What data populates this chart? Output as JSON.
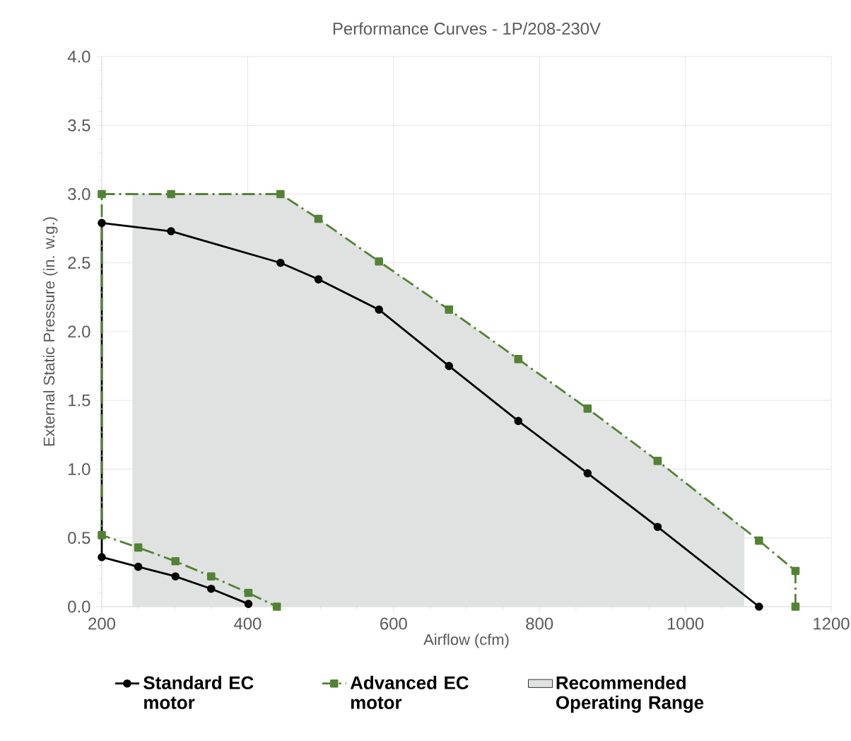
{
  "chart_data": {
    "type": "line",
    "title": "Performance Curves - 1P/208-230V",
    "xlabel": "Airflow (cfm)",
    "ylabel": "External Static Pressure (in. w.g.)",
    "xlim": [
      200,
      1200
    ],
    "xticks": [
      200,
      400,
      600,
      800,
      1000,
      1200
    ],
    "ylim": [
      0,
      4
    ],
    "yticks": [
      {
        "value": 0,
        "label": "0.0"
      },
      {
        "value": 0.5,
        "label": "0.5"
      },
      {
        "value": 1,
        "label": "1.0"
      },
      {
        "value": 1.5,
        "label": "1.5"
      },
      {
        "value": 2,
        "label": "2.0"
      },
      {
        "value": 2.5,
        "label": "2.5"
      },
      {
        "value": 3,
        "label": "3.0"
      },
      {
        "value": 3.5,
        "label": "3.5"
      },
      {
        "value": 4,
        "label": "4.0"
      }
    ],
    "grid": true,
    "legend": "bottom",
    "series": [
      {
        "name": "Recommended Operating Range",
        "type": "area",
        "color": "#e0e1e1",
        "x": [
          242,
          445,
          497,
          580,
          676,
          771,
          866,
          962,
          1081
        ],
        "values": [
          3.0,
          3.0,
          2.82,
          2.51,
          2.16,
          1.8,
          1.44,
          1.06,
          0.57
        ]
      },
      {
        "name": "Standard EC motor",
        "color": "#000000",
        "marker": "circle",
        "line_style": "solid",
        "x": [
          1101,
          962,
          866,
          771,
          676,
          580,
          497,
          445,
          295,
          200,
          200,
          250,
          301,
          350,
          401
        ],
        "values": [
          0.0,
          0.58,
          0.97,
          1.35,
          1.75,
          2.16,
          2.38,
          2.5,
          2.73,
          2.79,
          0.36,
          0.29,
          0.22,
          0.13,
          0.02
        ]
      },
      {
        "name": "Advanced EC motor",
        "color": "#548235",
        "marker": "square",
        "line_style": "dashdot",
        "x": [
          1151,
          1151,
          1101,
          962,
          866,
          771,
          676,
          580,
          497,
          445,
          295,
          200,
          200,
          250,
          301,
          350,
          401,
          440
        ],
        "values": [
          0.0,
          0.26,
          0.48,
          1.06,
          1.44,
          1.8,
          2.16,
          2.51,
          2.82,
          3.0,
          3.0,
          3.0,
          0.52,
          0.43,
          0.33,
          0.22,
          0.1,
          0.0
        ]
      }
    ]
  }
}
